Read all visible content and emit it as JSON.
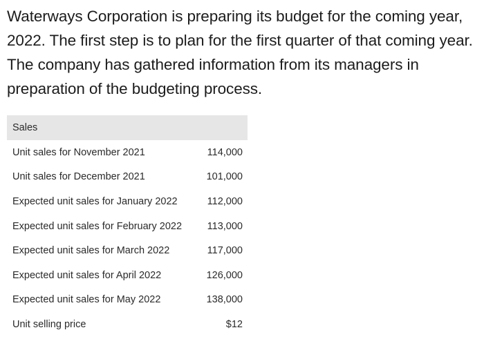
{
  "intro_text": "Waterways Corporation is preparing its budget for the coming year, 2022. The first step is to plan for the first quarter of that coming year. The company has gathered information from its managers in preparation of the budgeting process.",
  "table": {
    "header": "Sales",
    "rows": [
      {
        "label": "Unit sales for November 2021",
        "value": "114,000"
      },
      {
        "label": "Unit sales for December 2021",
        "value": "101,000"
      },
      {
        "label": "Expected unit sales for January 2022",
        "value": "112,000"
      },
      {
        "label": "Expected unit sales for February 2022",
        "value": "113,000"
      },
      {
        "label": "Expected unit sales for March 2022",
        "value": "117,000"
      },
      {
        "label": "Expected unit sales for April 2022",
        "value": "126,000"
      },
      {
        "label": "Expected unit sales for May 2022",
        "value": "138,000"
      },
      {
        "label": "Unit selling price",
        "value": "$12"
      }
    ]
  }
}
